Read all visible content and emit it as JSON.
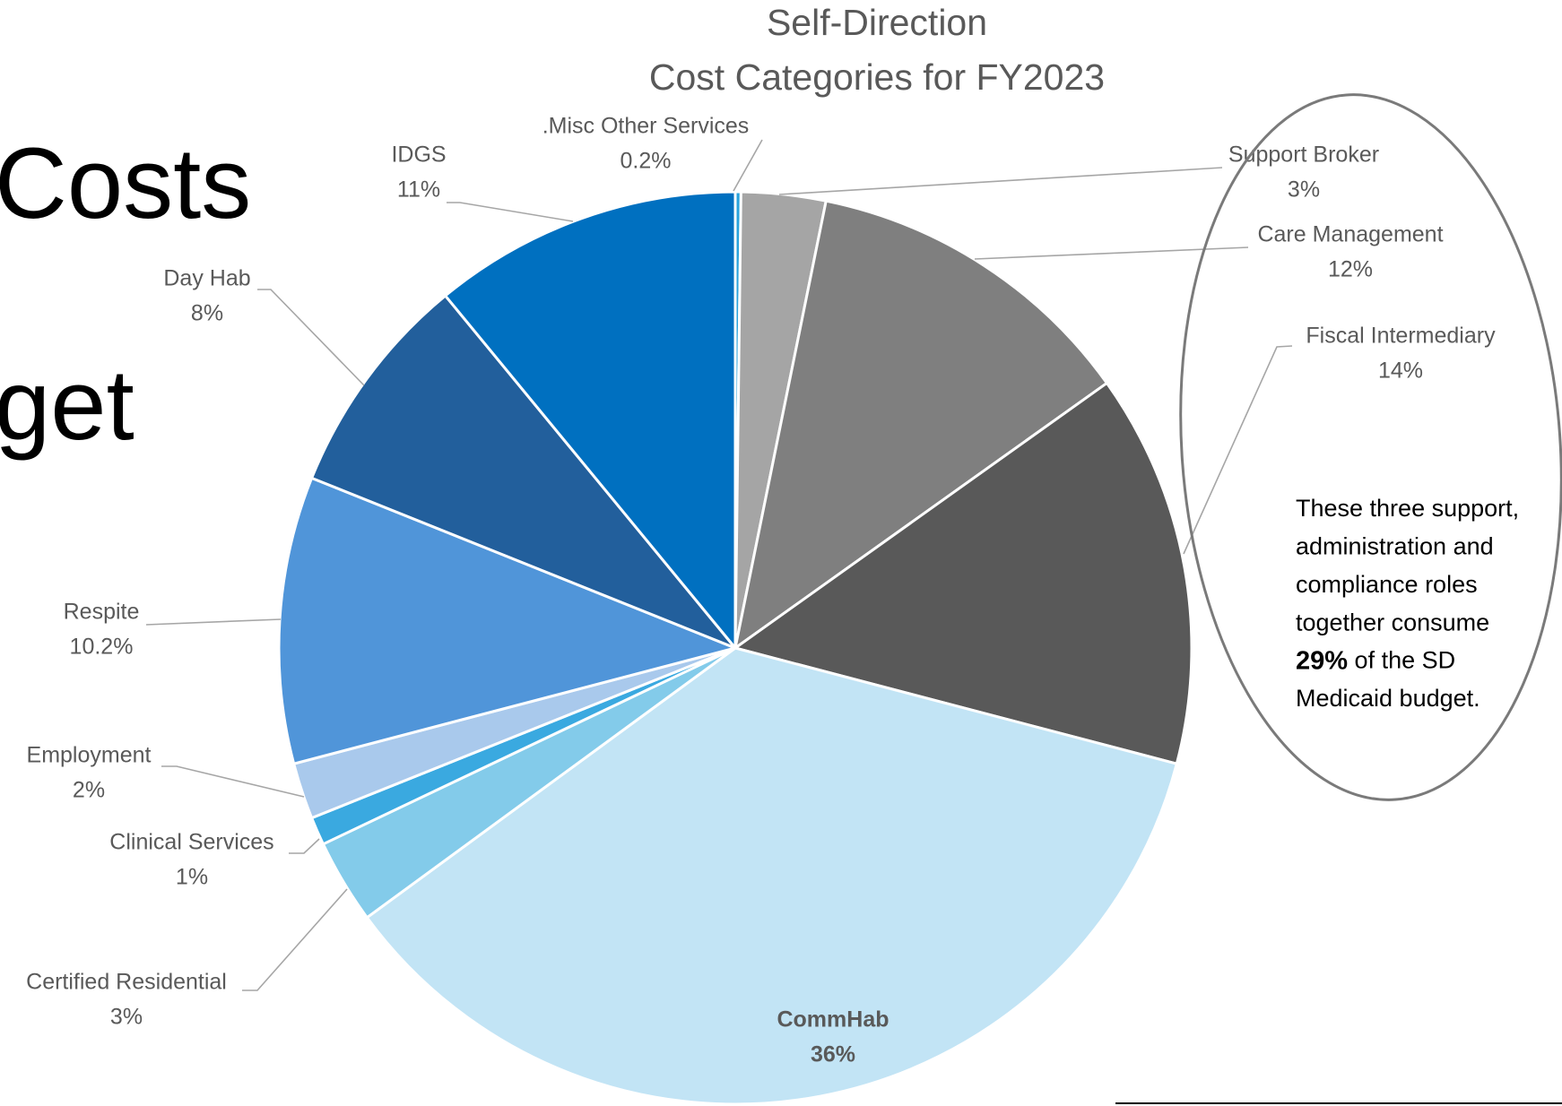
{
  "slide_text": [
    "Costs",
    "get"
  ],
  "chart_data": {
    "type": "pie",
    "title": [
      "Self-Direction",
      "Cost Categories for FY2023"
    ],
    "categories": [
      ".Misc Other Services",
      "Support Broker",
      "Care Management",
      "Fiscal Intermediary",
      "CommHab",
      "Certified Residential",
      "Clinical Services",
      "Employment",
      "Respite",
      "Day Hab",
      "IDGS"
    ],
    "values": [
      0.2,
      3,
      12,
      14,
      36,
      3,
      1,
      2,
      10.2,
      8,
      11
    ],
    "value_labels": [
      "0.2%",
      "3%",
      "12%",
      "14%",
      "36%",
      "3%",
      "1%",
      "2%",
      "10.2%",
      "8%",
      "11%"
    ],
    "colors": [
      "#29a3dc",
      "#a5a5a5",
      "#7f7f7f",
      "#595959",
      "#c2e4f5",
      "#83cbea",
      "#3aa9e0",
      "#a9c9ec",
      "#5095d9",
      "#225f9c",
      "#0070c0"
    ],
    "annotation": [
      "These three support,",
      "administration and",
      "compliance roles",
      "together consume",
      [
        "29%",
        " of the SD"
      ],
      "Medicaid budget."
    ]
  }
}
